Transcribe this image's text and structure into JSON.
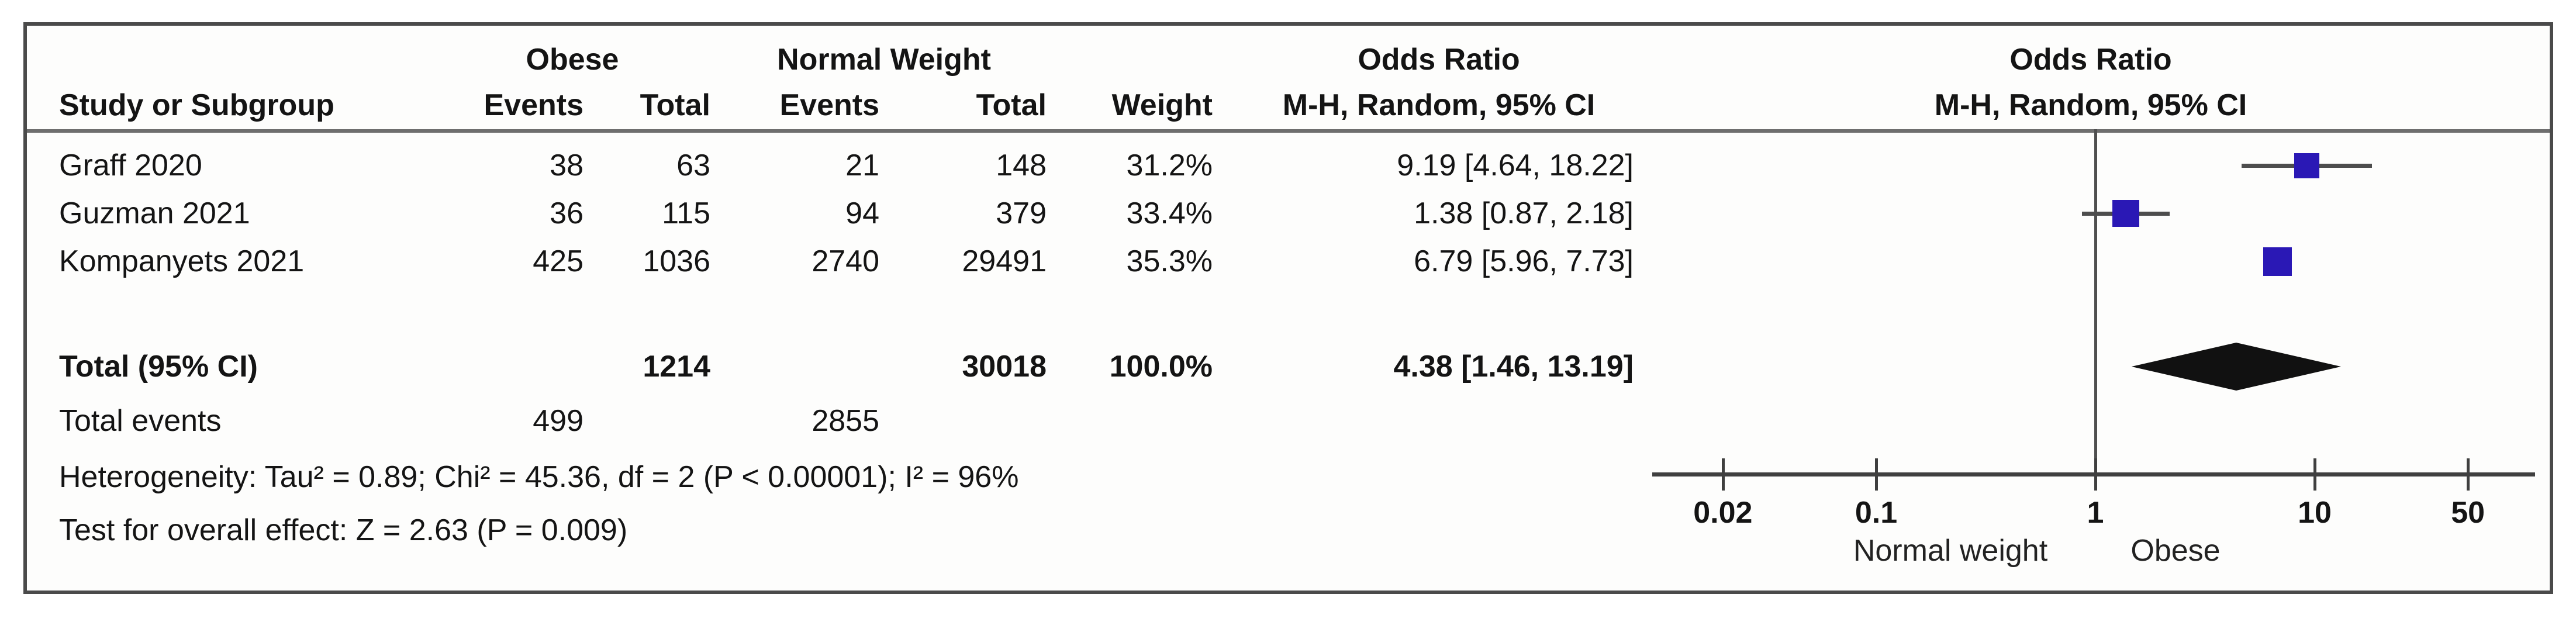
{
  "header": {
    "study_col": "Study or Subgroup",
    "group1": "Obese",
    "group2": "Normal Weight",
    "events": "Events",
    "total": "Total",
    "weight": "Weight",
    "or_line1": "Odds Ratio",
    "or_line2": "M-H, Random, 95% CI"
  },
  "rows": [
    {
      "study": "Graff 2020",
      "e1": "38",
      "t1": "63",
      "e2": "21",
      "t2": "148",
      "weight": "31.2%",
      "or_ci": "9.19 [4.64, 18.22]"
    },
    {
      "study": "Guzman 2021",
      "e1": "36",
      "t1": "115",
      "e2": "94",
      "t2": "379",
      "weight": "33.4%",
      "or_ci": "1.38 [0.87, 2.18]"
    },
    {
      "study": "Kompanyets 2021",
      "e1": "425",
      "t1": "1036",
      "e2": "2740",
      "t2": "29491",
      "weight": "35.3%",
      "or_ci": "6.79 [5.96, 7.73]"
    }
  ],
  "totals": {
    "label": "Total (95% CI)",
    "t1": "1214",
    "t2": "30018",
    "weight": "100.0%",
    "or_ci": "4.38 [1.46, 13.19]",
    "events_label": "Total events",
    "e1": "499",
    "e2": "2855"
  },
  "footnotes": {
    "heterogeneity": "Heterogeneity: Tau² = 0.89; Chi² = 45.36, df = 2 (P < 0.00001); I² = 96%",
    "overall_effect": "Test for overall effect: Z = 2.63 (P = 0.009)"
  },
  "axis": {
    "left_label": "Normal weight",
    "right_label": "Obese"
  },
  "colors": {
    "square": "#2a18b5",
    "ci_line": "#4d4d4d",
    "diamond": "#111111",
    "frame": "#4a4a4a"
  },
  "chart_data": {
    "type": "forest",
    "effect_measure": "Odds Ratio",
    "model": "M-H, Random, 95% CI",
    "x_scale": "log10",
    "x_ticks": [
      0.02,
      0.1,
      1,
      10,
      50
    ],
    "x_tick_labels": [
      "0.02",
      "0.1",
      "1",
      "10",
      "50"
    ],
    "null_line": 1,
    "studies": [
      {
        "name": "Graff 2020",
        "events_obese": 38,
        "total_obese": 63,
        "events_normal": 21,
        "total_normal": 148,
        "weight_pct": 31.2,
        "or": 9.19,
        "ci_low": 4.64,
        "ci_high": 18.22
      },
      {
        "name": "Guzman 2021",
        "events_obese": 36,
        "total_obese": 115,
        "events_normal": 94,
        "total_normal": 379,
        "weight_pct": 33.4,
        "or": 1.38,
        "ci_low": 0.87,
        "ci_high": 2.18
      },
      {
        "name": "Kompanyets 2021",
        "events_obese": 425,
        "total_obese": 1036,
        "events_normal": 2740,
        "total_normal": 29491,
        "weight_pct": 35.3,
        "or": 6.79,
        "ci_low": 5.96,
        "ci_high": 7.73
      }
    ],
    "pooled": {
      "label": "Total (95% CI)",
      "or": 4.38,
      "ci_low": 1.46,
      "ci_high": 13.19,
      "total_obese": 1214,
      "total_normal": 30018,
      "weight_pct": 100.0,
      "events_obese": 499,
      "events_normal": 2855
    },
    "heterogeneity": {
      "tau2": 0.89,
      "chi2": 45.36,
      "df": 2,
      "p": "< 0.00001",
      "i2_pct": 96
    },
    "overall_effect": {
      "z": 2.63,
      "p": 0.009
    },
    "axis_labels": {
      "left": "Normal weight",
      "right": "Obese"
    }
  }
}
